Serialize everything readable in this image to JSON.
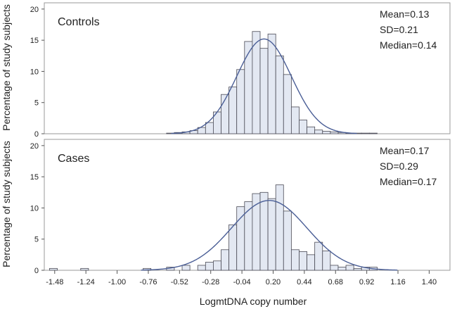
{
  "chart_data": {
    "type": "histogram",
    "xlabel": "LogmtDNA copy number",
    "ylabel": "Percentage of study subjects",
    "x_range": [
      -1.56,
      1.56
    ],
    "y_range": [
      0,
      21
    ],
    "x_ticks": [
      "-1.48",
      "-1.24",
      "-1.00",
      "-0.76",
      "-0.52",
      "-0.28",
      "-0.04",
      "0.20",
      "0.44",
      "0.68",
      "0.92",
      "1.16",
      "1.40"
    ],
    "y_ticks": [
      "0",
      "5",
      "10",
      "15",
      "20"
    ],
    "bin_width": 0.06,
    "colors": {
      "bar_fill": "#e3e8f2",
      "bar_stroke": "#4a4a55",
      "curve": "#4a5e96",
      "frame": "#9a9a9a"
    },
    "panels": [
      {
        "label": "Controls",
        "stats": [
          "Mean=0.13",
          "SD=0.21",
          "Median=0.14"
        ],
        "bins": [
          {
            "x0": -0.62,
            "value": 0.1
          },
          {
            "x0": -0.56,
            "value": 0.2
          },
          {
            "x0": -0.5,
            "value": 0.3
          },
          {
            "x0": -0.44,
            "value": 0.5
          },
          {
            "x0": -0.38,
            "value": 1.0
          },
          {
            "x0": -0.32,
            "value": 1.8
          },
          {
            "x0": -0.26,
            "value": 3.5
          },
          {
            "x0": -0.2,
            "value": 6.3
          },
          {
            "x0": -0.14,
            "value": 7.5
          },
          {
            "x0": -0.08,
            "value": 10.3
          },
          {
            "x0": -0.02,
            "value": 14.8
          },
          {
            "x0": 0.04,
            "value": 16.4
          },
          {
            "x0": 0.1,
            "value": 13.7
          },
          {
            "x0": 0.16,
            "value": 16.0
          },
          {
            "x0": 0.22,
            "value": 12.5
          },
          {
            "x0": 0.28,
            "value": 9.5
          },
          {
            "x0": 0.34,
            "value": 4.3
          },
          {
            "x0": 0.4,
            "value": 2.2
          },
          {
            "x0": 0.46,
            "value": 1.1
          },
          {
            "x0": 0.52,
            "value": 0.6
          },
          {
            "x0": 0.58,
            "value": 0.4
          },
          {
            "x0": 0.64,
            "value": 0.3
          },
          {
            "x0": 0.7,
            "value": 0.2
          },
          {
            "x0": 0.76,
            "value": 0.1
          },
          {
            "x0": 0.82,
            "value": 0.1
          },
          {
            "x0": 0.88,
            "value": 0.1
          },
          {
            "x0": 0.94,
            "value": 0.1
          }
        ],
        "curve": {
          "mean": 0.13,
          "sd": 0.21,
          "peak": 15.2
        }
      },
      {
        "label": "Cases",
        "stats": [
          "Mean=0.17",
          "SD=0.29",
          "Median=0.17"
        ],
        "bins": [
          {
            "x0": -1.52,
            "value": 0.3
          },
          {
            "x0": -1.28,
            "value": 0.3
          },
          {
            "x0": -0.8,
            "value": 0.3
          },
          {
            "x0": -0.62,
            "value": 0.5
          },
          {
            "x0": -0.5,
            "value": 0.8
          },
          {
            "x0": -0.38,
            "value": 0.8
          },
          {
            "x0": -0.32,
            "value": 1.3
          },
          {
            "x0": -0.26,
            "value": 1.5
          },
          {
            "x0": -0.2,
            "value": 3.3
          },
          {
            "x0": -0.14,
            "value": 7.3
          },
          {
            "x0": -0.08,
            "value": 10.2
          },
          {
            "x0": -0.02,
            "value": 11.0
          },
          {
            "x0": 0.04,
            "value": 12.3
          },
          {
            "x0": 0.1,
            "value": 12.5
          },
          {
            "x0": 0.16,
            "value": 11.5
          },
          {
            "x0": 0.22,
            "value": 13.7
          },
          {
            "x0": 0.28,
            "value": 9.5
          },
          {
            "x0": 0.34,
            "value": 3.3
          },
          {
            "x0": 0.4,
            "value": 3.0
          },
          {
            "x0": 0.46,
            "value": 2.5
          },
          {
            "x0": 0.52,
            "value": 4.5
          },
          {
            "x0": 0.58,
            "value": 3.1
          },
          {
            "x0": 0.64,
            "value": 0.8
          },
          {
            "x0": 0.7,
            "value": 0.5
          },
          {
            "x0": 0.76,
            "value": 0.8
          },
          {
            "x0": 0.82,
            "value": 0.3
          },
          {
            "x0": 0.88,
            "value": 0.5
          },
          {
            "x0": 0.94,
            "value": 0.5
          }
        ],
        "curve": {
          "mean": 0.17,
          "sd": 0.29,
          "peak": 11.2
        }
      }
    ]
  }
}
